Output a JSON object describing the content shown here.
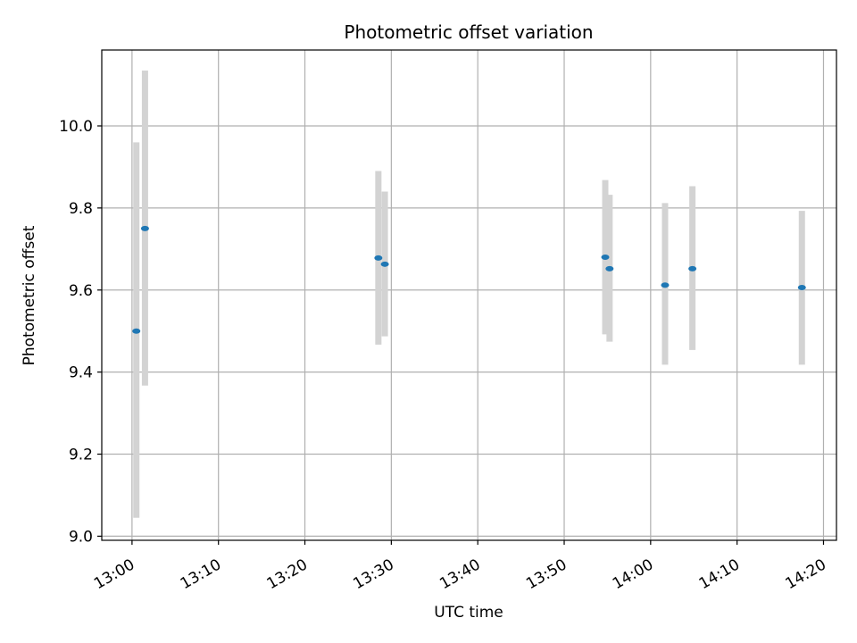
{
  "chart_data": {
    "type": "scatter",
    "title": "Photometric offset variation",
    "xlabel": "UTC time",
    "ylabel": "Photometric offset",
    "xlim": [
      "12:56:30",
      "14:21:30"
    ],
    "ylim": [
      8.99,
      10.185
    ],
    "x_ticks": [
      "13:00",
      "13:10",
      "13:20",
      "13:30",
      "13:40",
      "13:50",
      "14:00",
      "14:10",
      "14:20"
    ],
    "y_ticks": [
      "9.0",
      "9.2",
      "9.4",
      "9.6",
      "9.8",
      "10.0"
    ],
    "grid": true,
    "colors": {
      "marker": "#1f77b4",
      "errorbar": "#d3d3d3",
      "grid": "#b0b0b0",
      "axis": "#000000"
    },
    "points": [
      {
        "x": "13:00:30",
        "y": 9.5,
        "yerr_low": 9.045,
        "yerr_high": 9.96
      },
      {
        "x": "13:01:30",
        "y": 9.75,
        "yerr_low": 9.367,
        "yerr_high": 10.135
      },
      {
        "x": "13:28:30",
        "y": 9.678,
        "yerr_low": 9.467,
        "yerr_high": 9.89
      },
      {
        "x": "13:29:15",
        "y": 9.663,
        "yerr_low": 9.487,
        "yerr_high": 9.84
      },
      {
        "x": "13:54:45",
        "y": 9.68,
        "yerr_low": 9.492,
        "yerr_high": 9.868
      },
      {
        "x": "13:55:15",
        "y": 9.652,
        "yerr_low": 9.474,
        "yerr_high": 9.832
      },
      {
        "x": "14:01:40",
        "y": 9.612,
        "yerr_low": 9.418,
        "yerr_high": 9.812
      },
      {
        "x": "14:04:50",
        "y": 9.652,
        "yerr_low": 9.454,
        "yerr_high": 9.853
      },
      {
        "x": "14:17:30",
        "y": 9.606,
        "yerr_low": 9.418,
        "yerr_high": 9.793
      }
    ]
  }
}
